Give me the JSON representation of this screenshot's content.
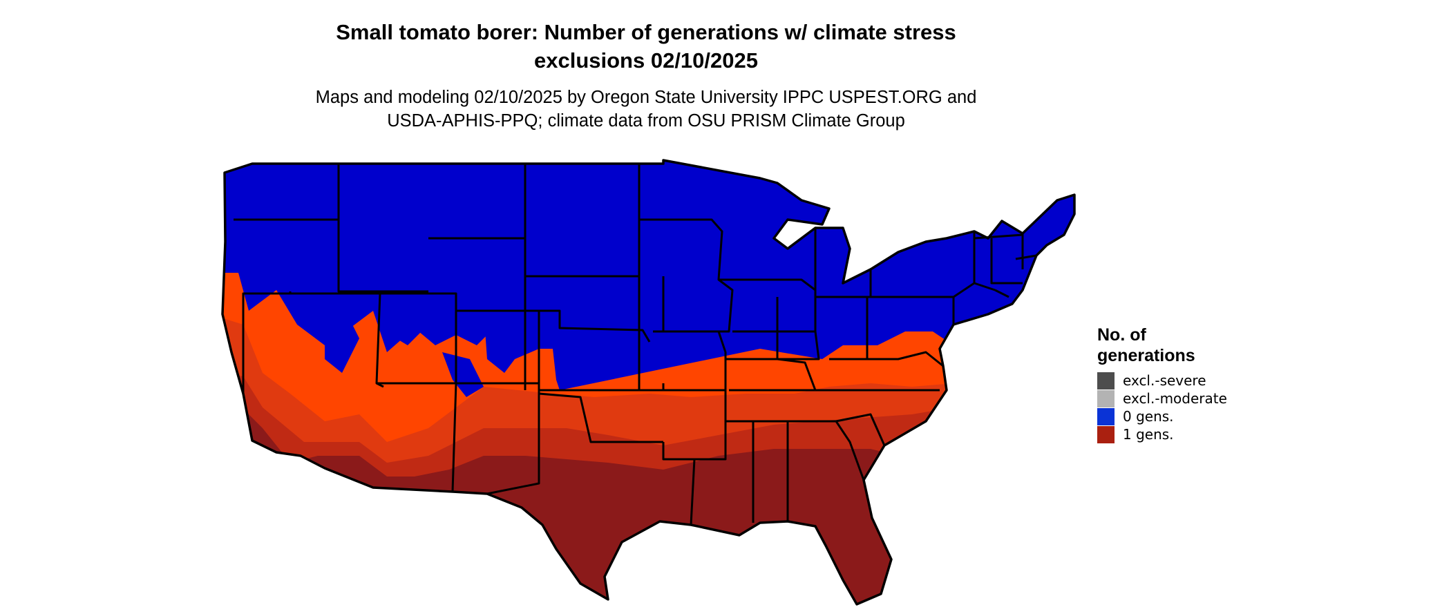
{
  "title_line1": "Small tomato borer: Number of generations w/ climate stress",
  "title_line2": "exclusions 02/10/2025",
  "subtitle_line1": "Maps and modeling 02/10/2025 by Oregon State University IPPC USPEST.ORG and",
  "subtitle_line2": "USDA-APHIS-PPQ; climate data from OSU PRISM Climate Group",
  "legend": {
    "title_line1": "No. of",
    "title_line2": "generations",
    "items": [
      {
        "label": "excl.-severe",
        "color": "#4d4d4d"
      },
      {
        "label": "excl.-moderate",
        "color": "#b3b3b3"
      },
      {
        "label": "0 gens.",
        "color": "#0a33d6"
      },
      {
        "label": "1 gens.",
        "color": "#aa2010"
      }
    ]
  },
  "map_colors": {
    "zero_gens": "#0000cc",
    "one_gen_band1": "#ff4500",
    "one_gen_band2": "#e03a10",
    "one_gen_band3": "#c02a14",
    "one_gen_band4": "#8b1a1a",
    "borders": "#000000"
  }
}
